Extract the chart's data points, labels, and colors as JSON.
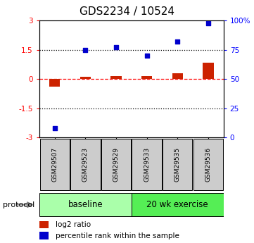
{
  "title": "GDS2234 / 10524",
  "samples": [
    "GSM29507",
    "GSM29523",
    "GSM29529",
    "GSM29533",
    "GSM29535",
    "GSM29536"
  ],
  "log2_ratio": [
    -0.38,
    0.1,
    0.15,
    0.15,
    0.3,
    0.85
  ],
  "percentile_rank": [
    8,
    75,
    77,
    70,
    82,
    98
  ],
  "ylim_left": [
    -3,
    3
  ],
  "ylim_right": [
    0,
    100
  ],
  "yticks_left": [
    -3,
    -1.5,
    0,
    1.5,
    3
  ],
  "yticks_right": [
    0,
    25,
    50,
    75,
    100
  ],
  "ytick_labels_left": [
    "-3",
    "-1.5",
    "0",
    "1.5",
    "3"
  ],
  "ytick_labels_right": [
    "0",
    "25",
    "50",
    "75",
    "100%"
  ],
  "bar_color": "#cc2200",
  "scatter_color": "#0000cc",
  "bar_width": 0.35,
  "group_baseline_color": "#aaffaa",
  "group_exercise_color": "#55ee55",
  "protocol_label": "protocol",
  "legend_bar_label": "log2 ratio",
  "legend_scatter_label": "percentile rank within the sample",
  "title_fontsize": 11,
  "tick_fontsize": 7.5,
  "sample_fontsize": 6.5,
  "group_fontsize": 8.5,
  "legend_fontsize": 7.5,
  "protocol_fontsize": 8,
  "background_color": "#ffffff",
  "sample_box_color": "#cccccc",
  "arrow_color": "#888888"
}
